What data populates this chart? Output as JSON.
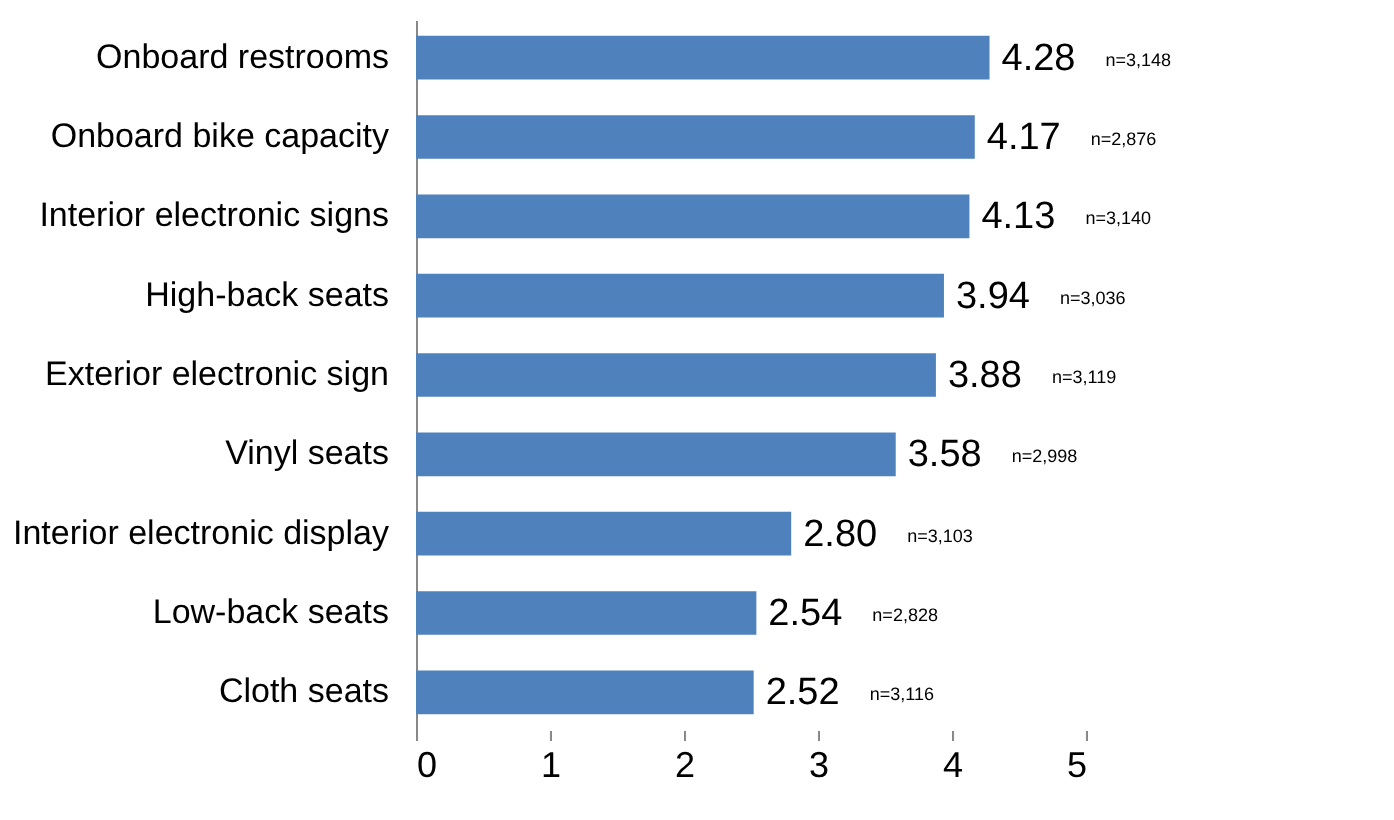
{
  "chart_data": {
    "type": "bar",
    "orientation": "horizontal",
    "categories": [
      "Onboard restrooms",
      "Onboard bike capacity",
      "Interior electronic signs",
      "High-back seats",
      "Exterior electronic sign",
      "Vinyl seats",
      "Interior electronic display",
      "Low-back seats",
      "Cloth seats"
    ],
    "values": [
      4.28,
      4.17,
      4.13,
      3.94,
      3.88,
      3.58,
      2.8,
      2.54,
      2.52
    ],
    "value_labels": [
      "4.28",
      "4.17",
      "4.13",
      "3.94",
      "3.88",
      "3.58",
      "2.80",
      "2.54",
      "2.52"
    ],
    "color": "#4f81bd",
    "xlim": [
      0,
      5
    ],
    "xticks": [
      0,
      1,
      2,
      3,
      4,
      5
    ],
    "grid": false,
    "annotations": [
      "n=3,148",
      "n=2,876",
      "n=3,140",
      "n=3,036",
      "n=3,119",
      "n=2,998",
      "n=3,103",
      "n=2,828",
      "n=3,116"
    ]
  }
}
